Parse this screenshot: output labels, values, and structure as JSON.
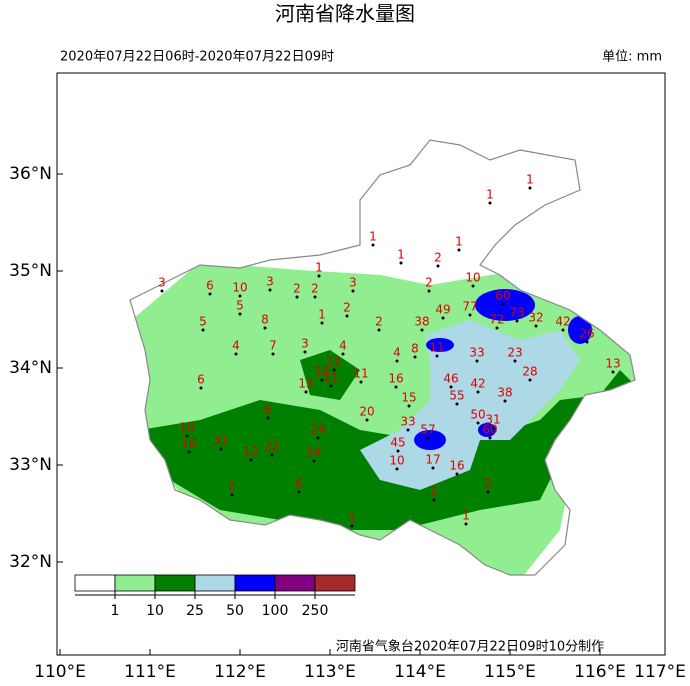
{
  "title": "河南省降水量图",
  "time_range": "2020年07月22日06时-2020年07月22日09时",
  "unit": "单位: mm",
  "footer": "河南省气象台2020年07月22日09时10分制作",
  "xticks": [
    {
      "value": 110,
      "label": "110°E"
    },
    {
      "value": 111,
      "label": "111°E"
    },
    {
      "value": 112,
      "label": "112°E"
    },
    {
      "value": 113,
      "label": "113°E"
    },
    {
      "value": 114,
      "label": "114°E"
    },
    {
      "value": 115,
      "label": "115°E"
    },
    {
      "value": 116,
      "label": "116°E"
    },
    {
      "value": 117,
      "label": "117°E"
    }
  ],
  "yticks": [
    {
      "value": 36,
      "label": "36°N"
    },
    {
      "value": 35,
      "label": "35°N"
    },
    {
      "value": 34,
      "label": "34°N"
    },
    {
      "value": 33,
      "label": "33°N"
    },
    {
      "value": 32,
      "label": "32°N"
    }
  ],
  "legend": {
    "colors": [
      "#ffffff",
      "#90ee90",
      "#008000",
      "#add8e6",
      "#0000ff",
      "#800080",
      "#a52a2a"
    ],
    "labels": [
      "1",
      "10",
      "25",
      "50",
      "100",
      "250"
    ]
  },
  "station_values": [
    1,
    1,
    1,
    1,
    1,
    1,
    2,
    10,
    3,
    6,
    10,
    3,
    2,
    2,
    3,
    2,
    60,
    5,
    2,
    49,
    77,
    72,
    73,
    32,
    5,
    8,
    1,
    2,
    38,
    42,
    26,
    4,
    7,
    3,
    4,
    4,
    8,
    11,
    33,
    23,
    11,
    13,
    6,
    13,
    10,
    11,
    16,
    46,
    42,
    28,
    11,
    15,
    55,
    38,
    6,
    20,
    33,
    50,
    31,
    10,
    24,
    57,
    60,
    16,
    31,
    12,
    22,
    24,
    45,
    17,
    16,
    10,
    2,
    6,
    2,
    2,
    1,
    1
  ]
}
